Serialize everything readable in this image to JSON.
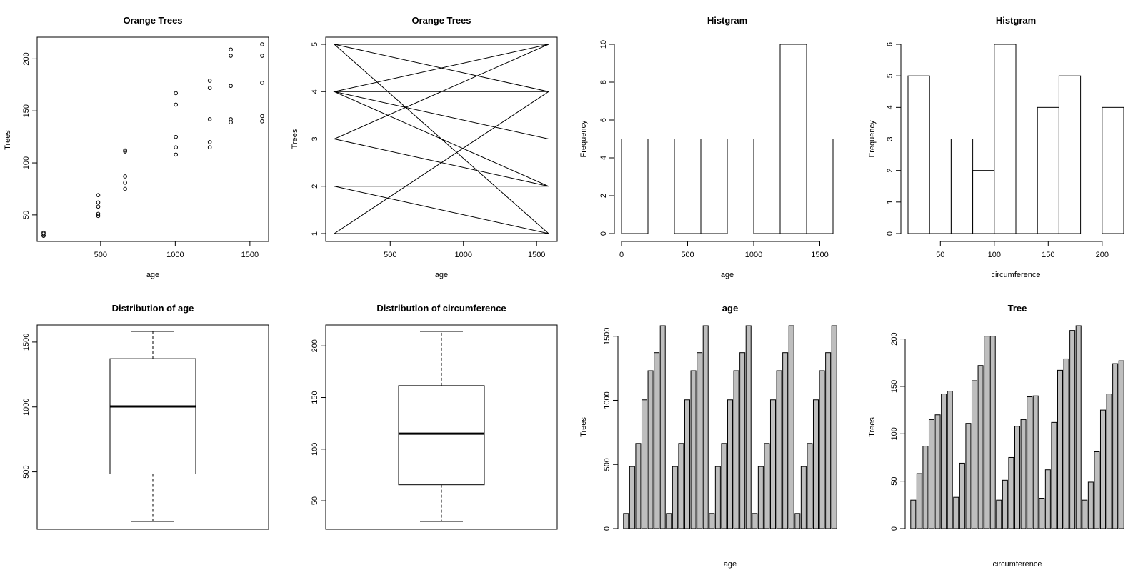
{
  "chart_data": [
    {
      "type": "scatter",
      "title": "Orange Trees",
      "xlabel": "age",
      "ylabel": "Trees",
      "xlim": [
        118,
        1582
      ],
      "ylim": [
        30,
        214
      ],
      "x_ticks": [
        500,
        1000,
        1500
      ],
      "y_ticks": [
        50,
        100,
        150,
        200
      ],
      "x": [
        118,
        484,
        664,
        1004,
        1231,
        1372,
        1582,
        118,
        484,
        664,
        1004,
        1231,
        1372,
        1582,
        118,
        484,
        664,
        1004,
        1231,
        1372,
        1582,
        118,
        484,
        664,
        1004,
        1231,
        1372,
        1582,
        118,
        484,
        664,
        1004,
        1231,
        1372,
        1582
      ],
      "y": [
        30,
        58,
        87,
        115,
        120,
        142,
        145,
        33,
        69,
        111,
        156,
        172,
        203,
        203,
        30,
        51,
        75,
        108,
        115,
        139,
        140,
        32,
        62,
        112,
        167,
        179,
        209,
        214,
        30,
        49,
        81,
        125,
        142,
        174,
        177
      ]
    },
    {
      "type": "line",
      "title": "Orange Trees",
      "xlabel": "age",
      "ylabel": "Trees",
      "xlim": [
        118,
        1582
      ],
      "ylim": [
        1,
        5
      ],
      "x_ticks": [
        500,
        1000,
        1500
      ],
      "y_ticks": [
        1,
        2,
        3,
        4,
        5
      ],
      "x": [
        118,
        1582,
        118,
        1582,
        118,
        1582,
        118,
        1582,
        118,
        1582,
        118,
        1582,
        118,
        1582,
        118,
        1582,
        118,
        1582,
        118,
        1582
      ],
      "y": [
        1,
        1,
        2,
        2,
        3,
        3,
        4,
        4,
        5,
        5,
        5,
        1,
        1,
        4,
        4,
        2,
        3,
        5,
        4,
        2
      ]
    },
    {
      "type": "bar",
      "title": "Histgram",
      "xlabel": "age",
      "ylabel": "Frequency",
      "bins": [
        [
          0,
          200
        ],
        [
          200,
          400
        ],
        [
          400,
          600
        ],
        [
          600,
          800
        ],
        [
          800,
          1000
        ],
        [
          1000,
          1200
        ],
        [
          1200,
          1400
        ],
        [
          1400,
          1600
        ]
      ],
      "values": [
        5,
        0,
        5,
        5,
        0,
        5,
        10,
        5
      ],
      "x_ticks": [
        0,
        500,
        1000,
        1500
      ],
      "y_ticks": [
        0,
        2,
        4,
        6,
        8,
        10
      ],
      "xlim": [
        0,
        1600
      ],
      "ylim": [
        0,
        10
      ]
    },
    {
      "type": "bar",
      "title": "Histgram",
      "xlabel": "circumference",
      "ylabel": "Frequency",
      "bins": [
        [
          20,
          40
        ],
        [
          40,
          60
        ],
        [
          60,
          80
        ],
        [
          80,
          100
        ],
        [
          100,
          120
        ],
        [
          120,
          140
        ],
        [
          140,
          160
        ],
        [
          160,
          180
        ],
        [
          180,
          200
        ],
        [
          200,
          220
        ]
      ],
      "values": [
        5,
        3,
        3,
        2,
        6,
        3,
        4,
        5,
        0,
        4
      ],
      "x_ticks": [
        50,
        100,
        150,
        200
      ],
      "y_ticks": [
        0,
        1,
        2,
        3,
        4,
        5,
        6
      ],
      "xlim": [
        20,
        220
      ],
      "ylim": [
        0,
        6
      ]
    },
    {
      "type": "box",
      "title": "Distribution of age",
      "xlabel": "",
      "ylabel": "",
      "whisker_low": 118,
      "q1": 484,
      "median": 1004,
      "q3": 1372,
      "whisker_high": 1582,
      "y_ticks": [
        500,
        1000,
        1500
      ],
      "ylim": [
        118,
        1582
      ]
    },
    {
      "type": "box",
      "title": "Distribution of circumference",
      "xlabel": "",
      "ylabel": "",
      "whisker_low": 30,
      "q1": 65.5,
      "median": 115,
      "q3": 161.5,
      "whisker_high": 214,
      "y_ticks": [
        50,
        100,
        150,
        200
      ],
      "ylim": [
        30,
        214
      ]
    },
    {
      "type": "bar",
      "title": "age",
      "xlabel": "age",
      "ylabel": "Trees",
      "values": [
        118,
        484,
        664,
        1004,
        1231,
        1372,
        1582,
        118,
        484,
        664,
        1004,
        1231,
        1372,
        1582,
        118,
        484,
        664,
        1004,
        1231,
        1372,
        1582,
        118,
        484,
        664,
        1004,
        1231,
        1372,
        1582,
        118,
        484,
        664,
        1004,
        1231,
        1372,
        1582
      ],
      "y_ticks": [
        0,
        500,
        1000,
        1500
      ],
      "ylim": [
        0,
        1582
      ]
    },
    {
      "type": "bar",
      "title": "Tree",
      "xlabel": "circumference",
      "ylabel": "Trees",
      "values": [
        30,
        58,
        87,
        115,
        120,
        142,
        145,
        33,
        69,
        111,
        156,
        172,
        203,
        203,
        30,
        51,
        75,
        108,
        115,
        139,
        140,
        32,
        62,
        112,
        167,
        179,
        209,
        214,
        30,
        49,
        81,
        125,
        142,
        174,
        177
      ],
      "y_ticks": [
        0,
        50,
        100,
        150,
        200
      ],
      "ylim": [
        0,
        214
      ]
    }
  ]
}
